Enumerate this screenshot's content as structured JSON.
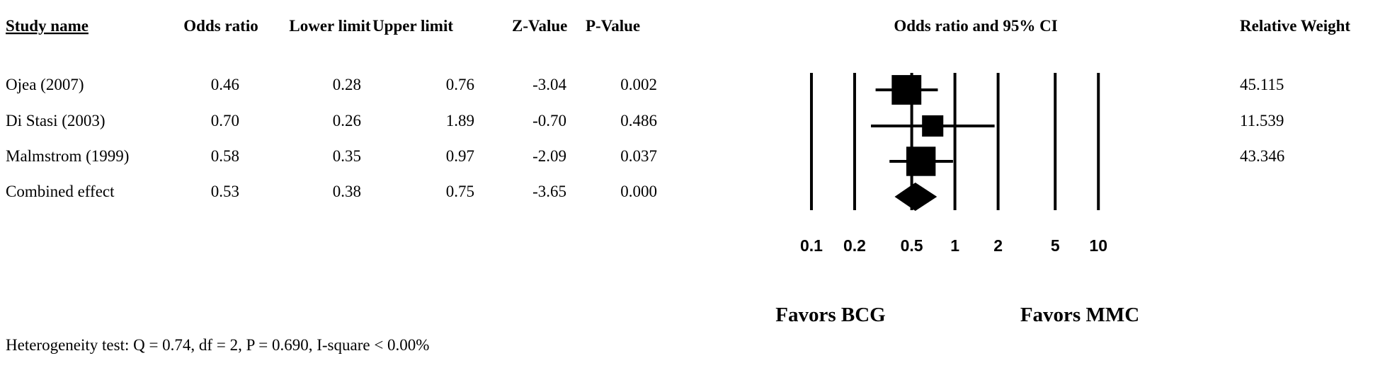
{
  "chart_data": {
    "type": "forest",
    "columns": [
      "Study name",
      "Odds ratio",
      "Lower limit",
      "Upper limit",
      "Z-Value",
      "P-Value"
    ],
    "plot_title": "Odds ratio and 95% CI",
    "weight_header": "Relative Weight",
    "studies": [
      {
        "name": "Ojea (2007)",
        "or": "0.46",
        "lower": "0.28",
        "upper": "0.76",
        "z": "-3.04",
        "p": "0.002",
        "weight": "45.115"
      },
      {
        "name": "Di Stasi (2003)",
        "or": "0.70",
        "lower": "0.26",
        "upper": "1.89",
        "z": "-0.70",
        "p": "0.486",
        "weight": "11.539"
      },
      {
        "name": "Malmstrom (1999)",
        "or": "0.58",
        "lower": "0.35",
        "upper": "0.97",
        "z": "-2.09",
        "p": "0.037",
        "weight": "43.346"
      }
    ],
    "combined": {
      "name": "Combined effect",
      "or": "0.53",
      "lower": "0.38",
      "upper": "0.75",
      "z": "-3.65",
      "p": "0.000"
    },
    "x_scale": "log",
    "x_ticks": [
      "0.1",
      "0.2",
      "0.5",
      "1",
      "2",
      "5",
      "10"
    ],
    "favors_left": "Favors BCG",
    "favors_right": "Favors MMC",
    "heterogeneity": "Heterogeneity test: Q = 0.74, df = 2, P = 0.690, I-square < 0.00%"
  }
}
